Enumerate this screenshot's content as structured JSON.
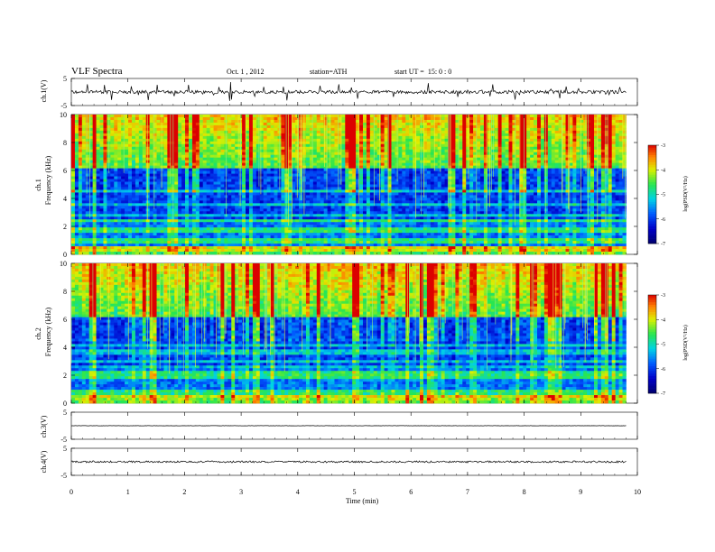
{
  "header": {
    "title": "VLF  Spectra",
    "date": "Oct. 1  , 2012",
    "station": "station=ATH",
    "start_label": "start  UT  =",
    "start_time": "15: 0  : 0"
  },
  "chart_data": [
    {
      "type": "line",
      "name": "ch1-waveform",
      "ylabel": "ch.1(V)",
      "ylim": [
        -5,
        5
      ],
      "y_ticks": [
        "5",
        "-5"
      ],
      "xlim": [
        0,
        10
      ],
      "series": [
        {
          "name": "ch.1",
          "baseline": 0,
          "noise_amplitude": 0.6,
          "spike_amplitude": 3.5
        }
      ]
    },
    {
      "type": "heatmap",
      "name": "ch1-spectrogram",
      "ylabel_top": "ch.1",
      "ylabel": "Frequency  (kHz)",
      "ylim": [
        0,
        10
      ],
      "y_ticks": [
        "0",
        "2",
        "4",
        "6",
        "8",
        "10"
      ],
      "xlim": [
        0,
        9.8
      ],
      "colorbar": {
        "label": "log(PSD(V²/Hz)",
        "ticks": [
          "-3",
          "-4",
          "-5",
          "-6",
          "-7"
        ],
        "range": [
          -7,
          -3
        ]
      }
    },
    {
      "type": "heatmap",
      "name": "ch2-spectrogram",
      "ylabel_top": "ch.2",
      "ylabel": "Frequency  (kHz)",
      "ylim": [
        0,
        10
      ],
      "y_ticks": [
        "0",
        "2",
        "4",
        "6",
        "8",
        "10"
      ],
      "xlim": [
        0,
        9.8
      ],
      "colorbar": {
        "label": "log(PSD(V²/Hz)",
        "ticks": [
          "-3",
          "-4",
          "-5",
          "-6",
          "-7"
        ],
        "range": [
          -7,
          -3
        ]
      }
    },
    {
      "type": "line",
      "name": "ch3-waveform",
      "ylabel": "ch.3(V)",
      "ylim": [
        -5,
        5
      ],
      "y_ticks": [
        "5",
        "-5"
      ],
      "series": [
        {
          "name": "ch.3",
          "baseline": 0,
          "noise_amplitude": 0.05
        }
      ]
    },
    {
      "type": "line",
      "name": "ch4-waveform",
      "ylabel": "ch.4(V)",
      "ylim": [
        -5,
        5
      ],
      "y_ticks": [
        "5",
        "-5"
      ],
      "series": [
        {
          "name": "ch.4",
          "baseline": 0,
          "noise_amplitude": 0.35
        }
      ]
    }
  ],
  "x_axis": {
    "label": "Time  (min)",
    "range": [
      0,
      10
    ],
    "ticks": [
      "0",
      "1",
      "2",
      "3",
      "4",
      "5",
      "6",
      "7",
      "8",
      "9",
      "10"
    ]
  },
  "colors": {
    "ink": "#000000",
    "spec_deep": "#0000a0",
    "spec_blue": "#0050ff",
    "spec_cyan": "#00d0e0",
    "spec_green": "#30e050",
    "spec_yellow": "#e8f000",
    "spec_red": "#e00000"
  }
}
